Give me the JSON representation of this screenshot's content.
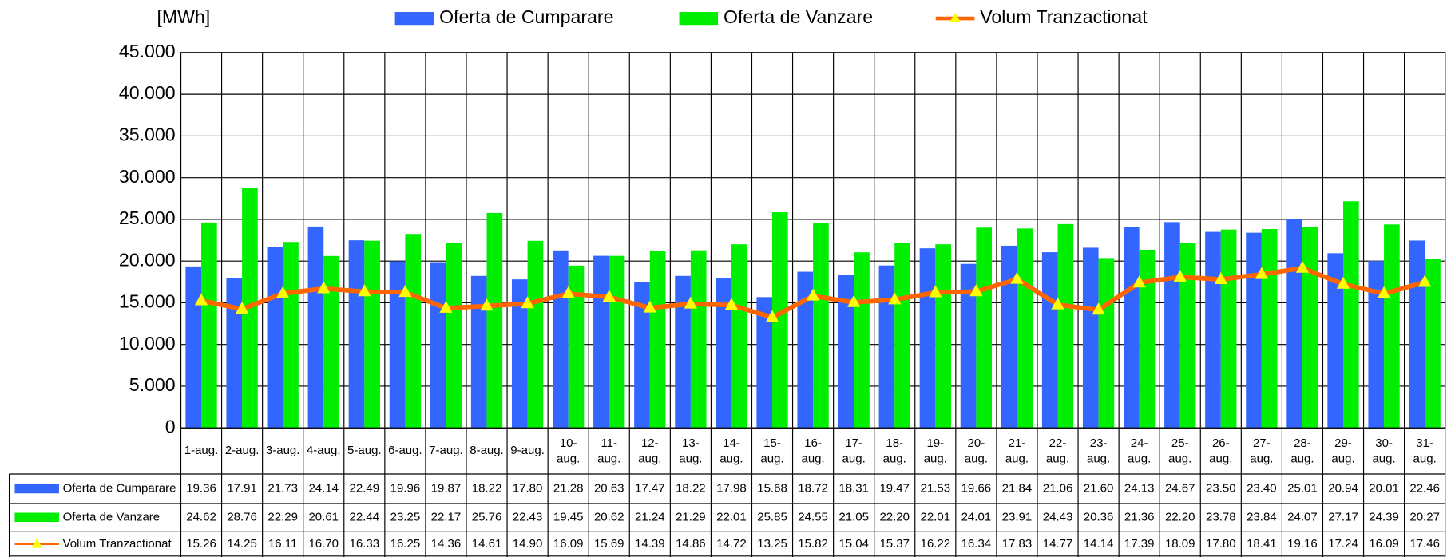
{
  "chart_data": {
    "type": "bar",
    "y_label": "[MWh]",
    "categories": [
      "1-aug.",
      "2-aug.",
      "3-aug.",
      "4-aug.",
      "5-aug.",
      "6-aug.",
      "7-aug.",
      "8-aug.",
      "9-aug.",
      "10-aug.",
      "11-aug.",
      "12-aug.",
      "13-aug.",
      "14-aug.",
      "15-aug.",
      "16-aug.",
      "17-aug.",
      "18-aug.",
      "19-aug.",
      "20-aug.",
      "21-aug.",
      "22-aug.",
      "23-aug.",
      "24-aug.",
      "25-aug.",
      "26-aug.",
      "27-aug.",
      "28-aug.",
      "29-aug.",
      "30-aug.",
      "31-aug."
    ],
    "series": [
      {
        "name": "Oferta de Cumparare",
        "type": "bar",
        "color": "#3366ff",
        "values": [
          19360,
          17910,
          21730,
          24140,
          22490,
          19960,
          19870,
          18220,
          17800,
          21280,
          20630,
          17470,
          18220,
          17980,
          15680,
          18720,
          18310,
          19470,
          21530,
          19660,
          21840,
          21060,
          21600,
          24130,
          24670,
          23500,
          23400,
          25010,
          20940,
          20010,
          22460
        ],
        "value_labels": [
          "19.36",
          "17.91",
          "21.73",
          "24.14",
          "22.49",
          "19.96",
          "19.87",
          "18.22",
          "17.80",
          "21.28",
          "20.63",
          "17.47",
          "18.22",
          "17.98",
          "15.68",
          "18.72",
          "18.31",
          "19.47",
          "21.53",
          "19.66",
          "21.84",
          "21.06",
          "21.60",
          "24.13",
          "24.67",
          "23.50",
          "23.40",
          "25.01",
          "20.94",
          "20.01",
          "22.46"
        ]
      },
      {
        "name": "Oferta de Vanzare",
        "type": "bar",
        "color": "#00ee00",
        "values": [
          24620,
          28760,
          22290,
          20610,
          22440,
          23250,
          22170,
          25760,
          22430,
          19450,
          20620,
          21240,
          21290,
          22010,
          25850,
          24550,
          21050,
          22200,
          22010,
          24010,
          23910,
          24430,
          20360,
          21360,
          22200,
          23780,
          23840,
          24070,
          27170,
          24390,
          20270
        ],
        "value_labels": [
          "24.62",
          "28.76",
          "22.29",
          "20.61",
          "22.44",
          "23.25",
          "22.17",
          "25.76",
          "22.43",
          "19.45",
          "20.62",
          "21.24",
          "21.29",
          "22.01",
          "25.85",
          "24.55",
          "21.05",
          "22.20",
          "22.01",
          "24.01",
          "23.91",
          "24.43",
          "20.36",
          "21.36",
          "22.20",
          "23.78",
          "23.84",
          "24.07",
          "27.17",
          "24.39",
          "20.27"
        ]
      },
      {
        "name": "Volum Tranzactionat",
        "type": "line",
        "color": "#ff6600",
        "marker_color": "#ffff00",
        "values": [
          15260,
          14250,
          16110,
          16700,
          16330,
          16250,
          14360,
          14610,
          14900,
          16090,
          15690,
          14390,
          14860,
          14720,
          13250,
          15820,
          15040,
          15370,
          16220,
          16340,
          17830,
          14770,
          14140,
          17390,
          18090,
          17800,
          18410,
          19160,
          17240,
          16090,
          17460
        ],
        "value_labels": [
          "15.26",
          "14.25",
          "16.11",
          "16.70",
          "16.33",
          "16.25",
          "14.36",
          "14.61",
          "14.90",
          "16.09",
          "15.69",
          "14.39",
          "14.86",
          "14.72",
          "13.25",
          "15.82",
          "15.04",
          "15.37",
          "16.22",
          "16.34",
          "17.83",
          "14.77",
          "14.14",
          "17.39",
          "18.09",
          "17.80",
          "18.41",
          "19.16",
          "17.24",
          "16.09",
          "17.46"
        ]
      }
    ],
    "ylim": [
      0,
      45000
    ],
    "yticks": [
      0,
      {
        "value": 5000,
        "label": "5.000"
      },
      {
        "value": 10000,
        "label": "10.000"
      },
      {
        "value": 15000,
        "label": "15.000"
      },
      {
        "value": 20000,
        "label": "20.000"
      },
      {
        "value": 25000,
        "label": "25.000"
      },
      {
        "value": 30000,
        "label": "30.000"
      },
      {
        "value": 35000,
        "label": "35.000"
      },
      {
        "value": 40000,
        "label": "40.000"
      },
      {
        "value": 45000,
        "label": "45.000"
      }
    ],
    "grid": true,
    "legend": "top"
  }
}
